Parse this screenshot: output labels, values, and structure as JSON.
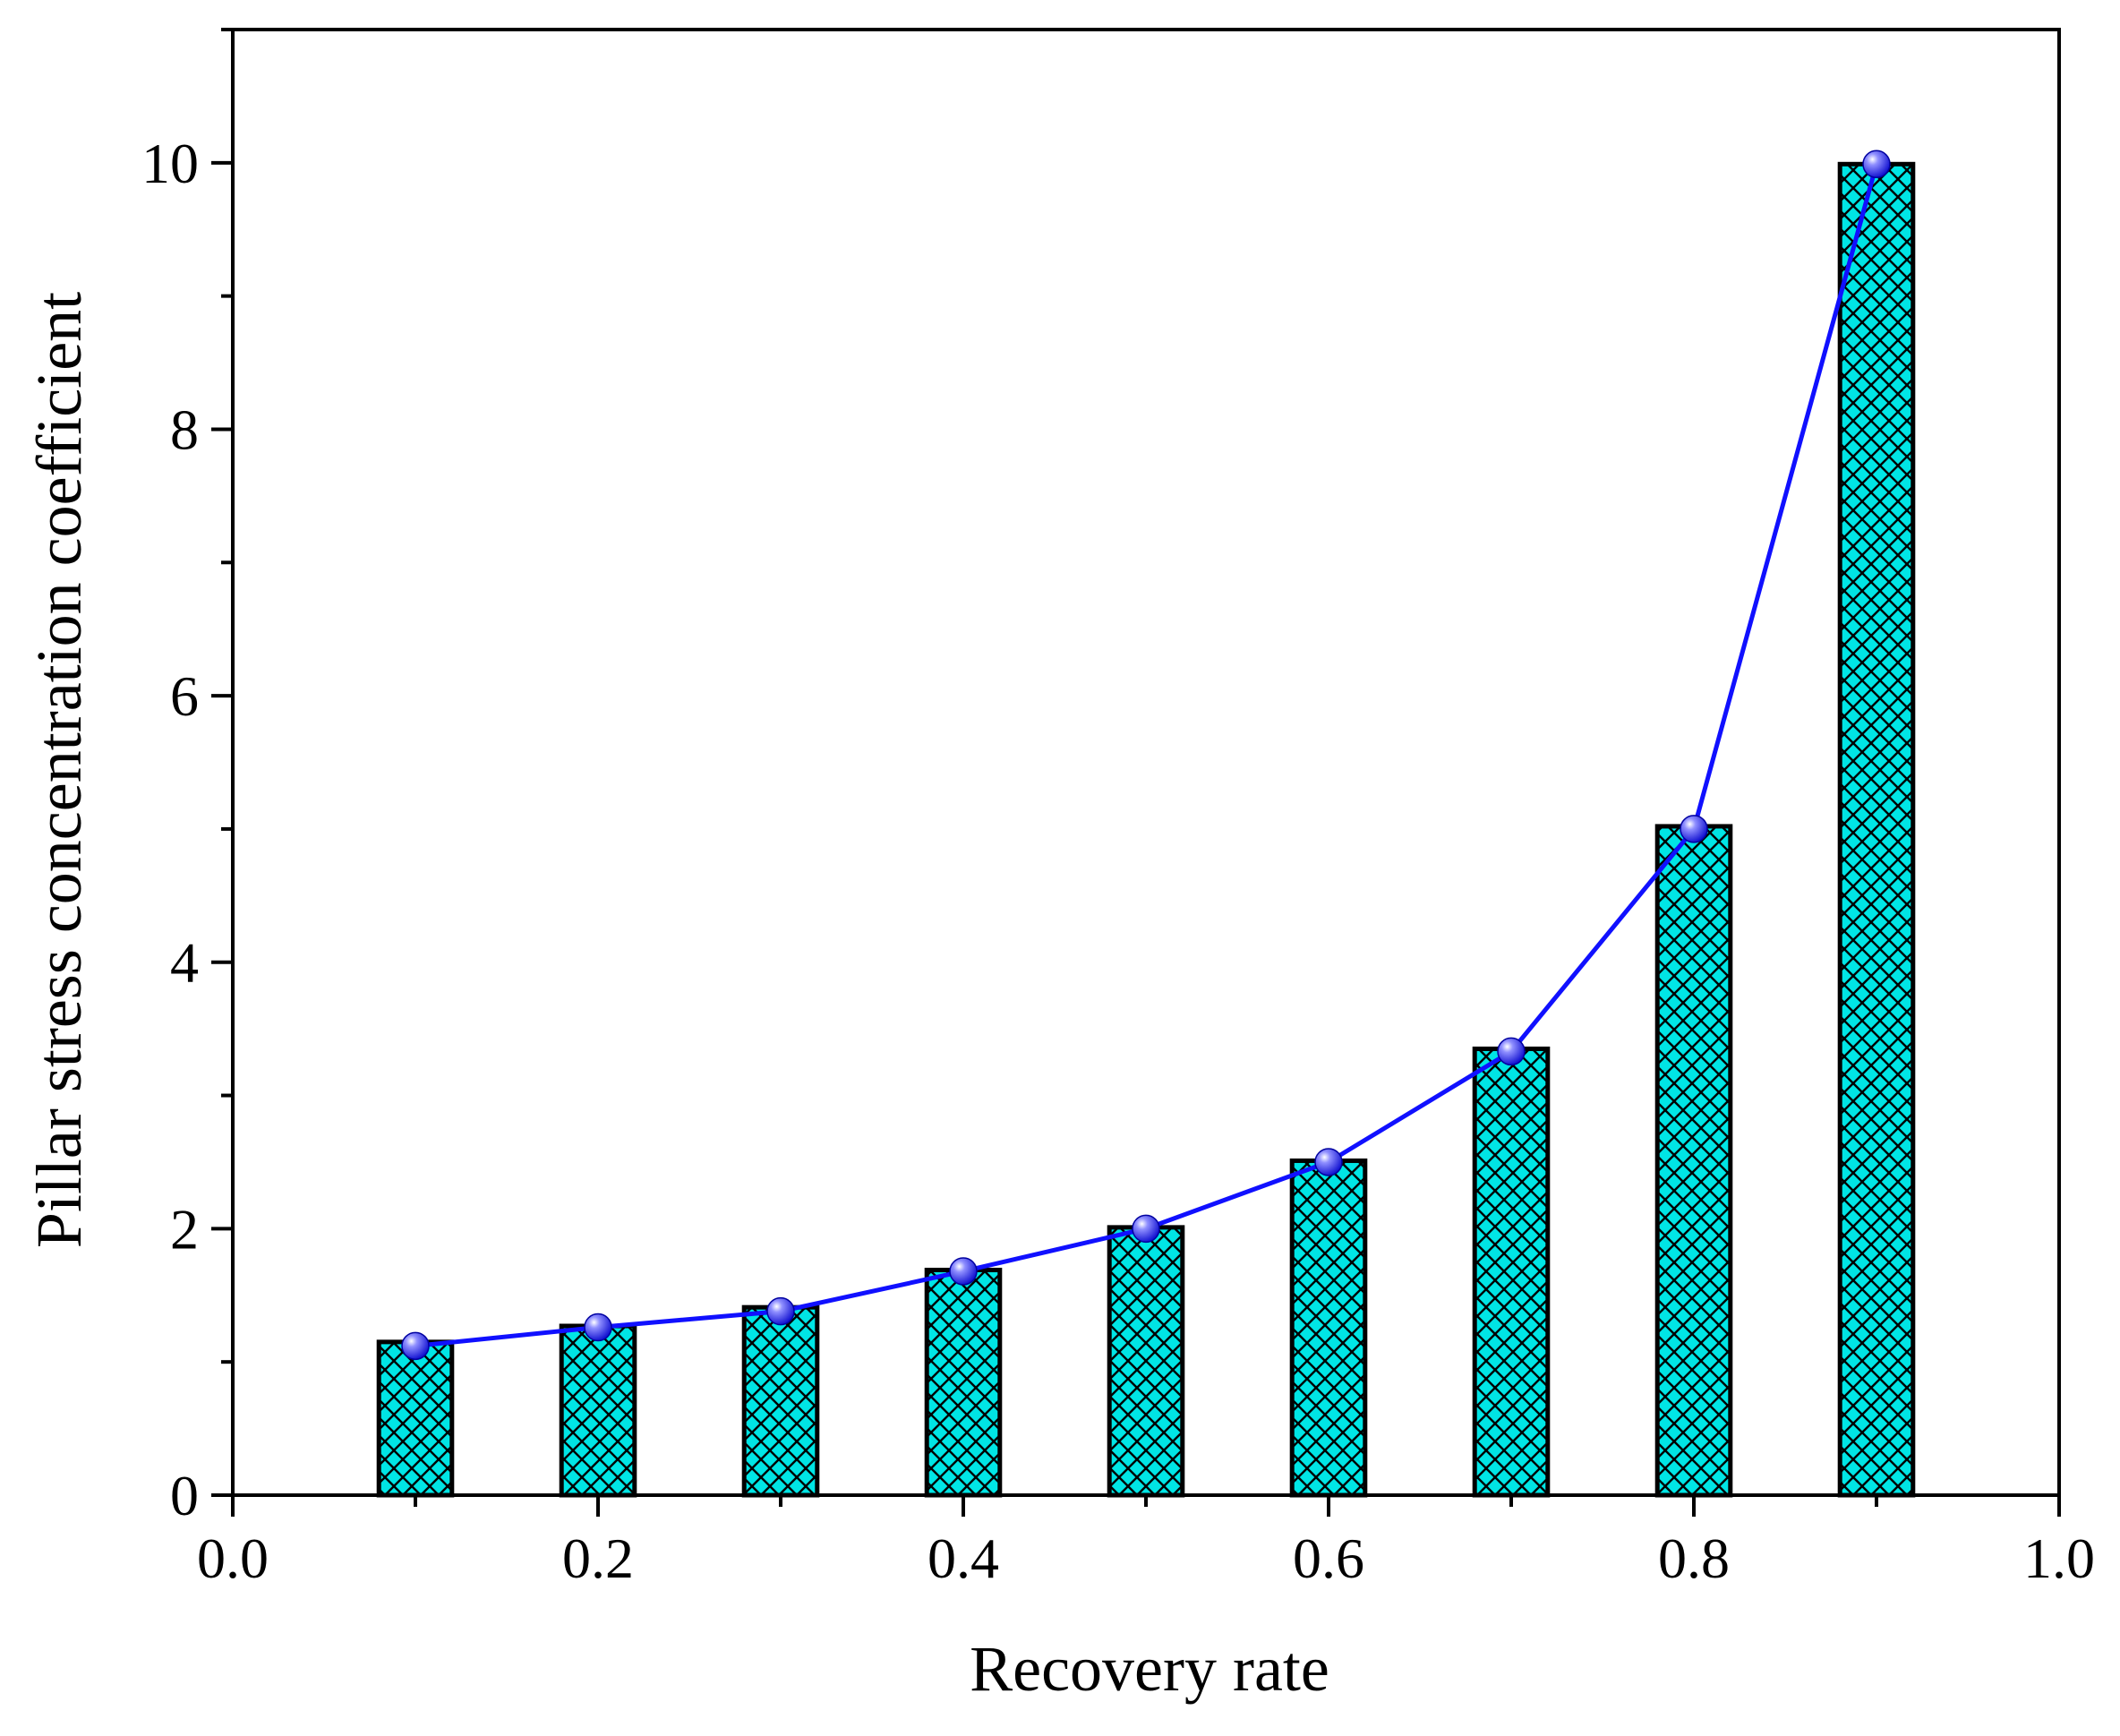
{
  "chart_data": {
    "type": "bar",
    "x": [
      0.1,
      0.2,
      0.3,
      0.4,
      0.5,
      0.6,
      0.7,
      0.8,
      0.9
    ],
    "bar_values": [
      1.15,
      1.27,
      1.41,
      1.69,
      2.01,
      2.51,
      3.35,
      5.02,
      9.99
    ],
    "line_values": [
      1.12,
      1.26,
      1.38,
      1.68,
      2.0,
      2.5,
      3.33,
      5.0,
      9.99
    ],
    "xlabel": "Recovery rate",
    "ylabel": "Pillar stress concentration coefficient",
    "xlim": [
      0.0,
      1.0
    ],
    "ylim": [
      0,
      11
    ],
    "xticks": [
      0.0,
      0.2,
      0.4,
      0.6,
      0.8,
      1.0
    ],
    "xtick_labels": [
      "0.0",
      "0.2",
      "0.4",
      "0.6",
      "0.8",
      "1.0"
    ],
    "yticks": [
      0,
      2,
      4,
      6,
      8,
      10
    ],
    "ytick_labels": [
      "0",
      "2",
      "4",
      "6",
      "8",
      "10"
    ],
    "bar_width": 0.04,
    "grid": false,
    "legend": "none",
    "colors": {
      "bar_fill": "#00e5e5",
      "bar_hatch": "#000000",
      "bar_edge": "#000000",
      "line": "#1010ff",
      "marker": "#2a2aff"
    }
  }
}
